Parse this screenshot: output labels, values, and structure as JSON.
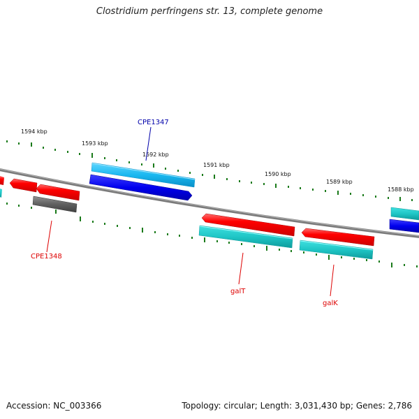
{
  "title": "Clostridium perfringens str. 13, complete genome",
  "footer": {
    "accession": "Accession: NC_003366",
    "topology": "Topology: circular; Length: 3,031,430 bp; Genes: 2,786"
  },
  "colors": {
    "backbone": "#808080",
    "tick": "#1a7a1a",
    "gene_red": "#ff0000",
    "gene_cyan_outer": "#1fc6c6",
    "gene_light_blue": "#1ab8f0",
    "gene_blue": "#0000ee",
    "gene_gray": "#606060",
    "label_red": "#dd0000",
    "label_blue": "#0000aa"
  },
  "scale": {
    "kbp_labels": [
      "1594 kbp",
      "1593 kbp",
      "1592 kbp",
      "1591 kbp",
      "1590 kbp",
      "1589 kbp",
      "1588 kbp"
    ]
  },
  "genes": [
    {
      "id": "CPE1347",
      "label": "CPE1347",
      "color": "gene_light_blue",
      "strand": "forward-outer"
    },
    {
      "id": "CPE1347b",
      "label": "",
      "color": "gene_blue",
      "strand": "forward-inner"
    },
    {
      "id": "CPE1348",
      "label": "CPE1348",
      "color": "gene_gray",
      "strand": "reverse-inner"
    },
    {
      "id": "galT",
      "label": "galT",
      "color": "gene_cyan_outer",
      "strand": "reverse-outer"
    },
    {
      "id": "galK",
      "label": "galK",
      "color": "gene_cyan_outer",
      "strand": "reverse-outer"
    }
  ]
}
